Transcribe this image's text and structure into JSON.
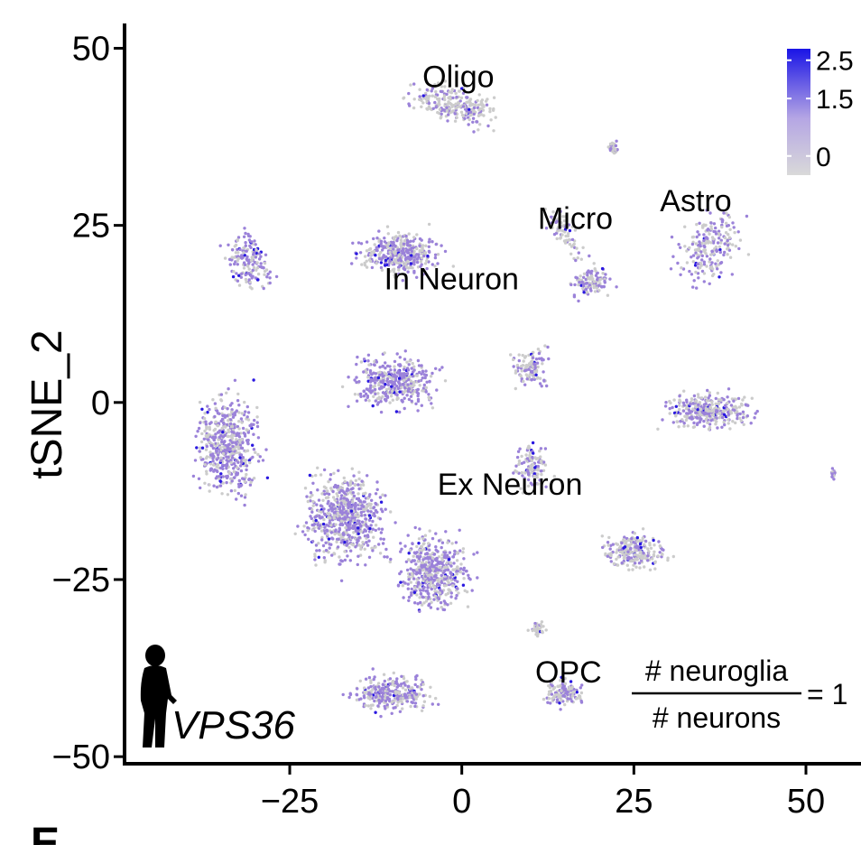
{
  "chart_data": {
    "type": "scatter",
    "xlabel": "",
    "ylabel": "tSNE_2",
    "xlim": [
      -49,
      58
    ],
    "ylim": [
      -51,
      53.5
    ],
    "x_ticks": [
      -25,
      0,
      25,
      50
    ],
    "y_ticks": [
      50,
      25,
      0,
      -25,
      -50
    ],
    "tick_labels_x": [
      "−25",
      "0",
      "25",
      "50"
    ],
    "tick_labels_y": [
      "50",
      "25",
      "0",
      "−25",
      "−50"
    ],
    "color_scale": {
      "low_color": "#cccccc",
      "high_color": "#0000ff",
      "range": [
        -0.5,
        2.8
      ],
      "tick_values": [
        2.5,
        1.5,
        0
      ],
      "tick_labels": [
        "2.5",
        "1.5",
        "0"
      ]
    },
    "clusters": [
      {
        "name": "Oligo",
        "label_x": -0.5,
        "label_y": 44.5
      },
      {
        "name": "Micro",
        "label_x": 16.5,
        "label_y": 24.5
      },
      {
        "name": "Astro",
        "label_x": 34,
        "label_y": 27
      },
      {
        "name": "In Neuron",
        "label_x": -1.5,
        "label_y": 16
      },
      {
        "name": "Ex Neuron",
        "label_x": 7,
        "label_y": -13
      },
      {
        "name": "OPC",
        "label_x": 15.5,
        "label_y": -39.5
      }
    ],
    "annotations": {
      "gene": "VPS36",
      "ratio_numerator": "# neuroglia",
      "ratio_denominator": "# neurons",
      "ratio_value": "= 1",
      "panel_letter": "E"
    }
  },
  "colors": {
    "point_low": "#cccccc",
    "point_mid": "#9b82d9",
    "point_high": "#2a18e0",
    "axis": "#000000"
  },
  "icons": [
    "human-silhouette-icon"
  ]
}
